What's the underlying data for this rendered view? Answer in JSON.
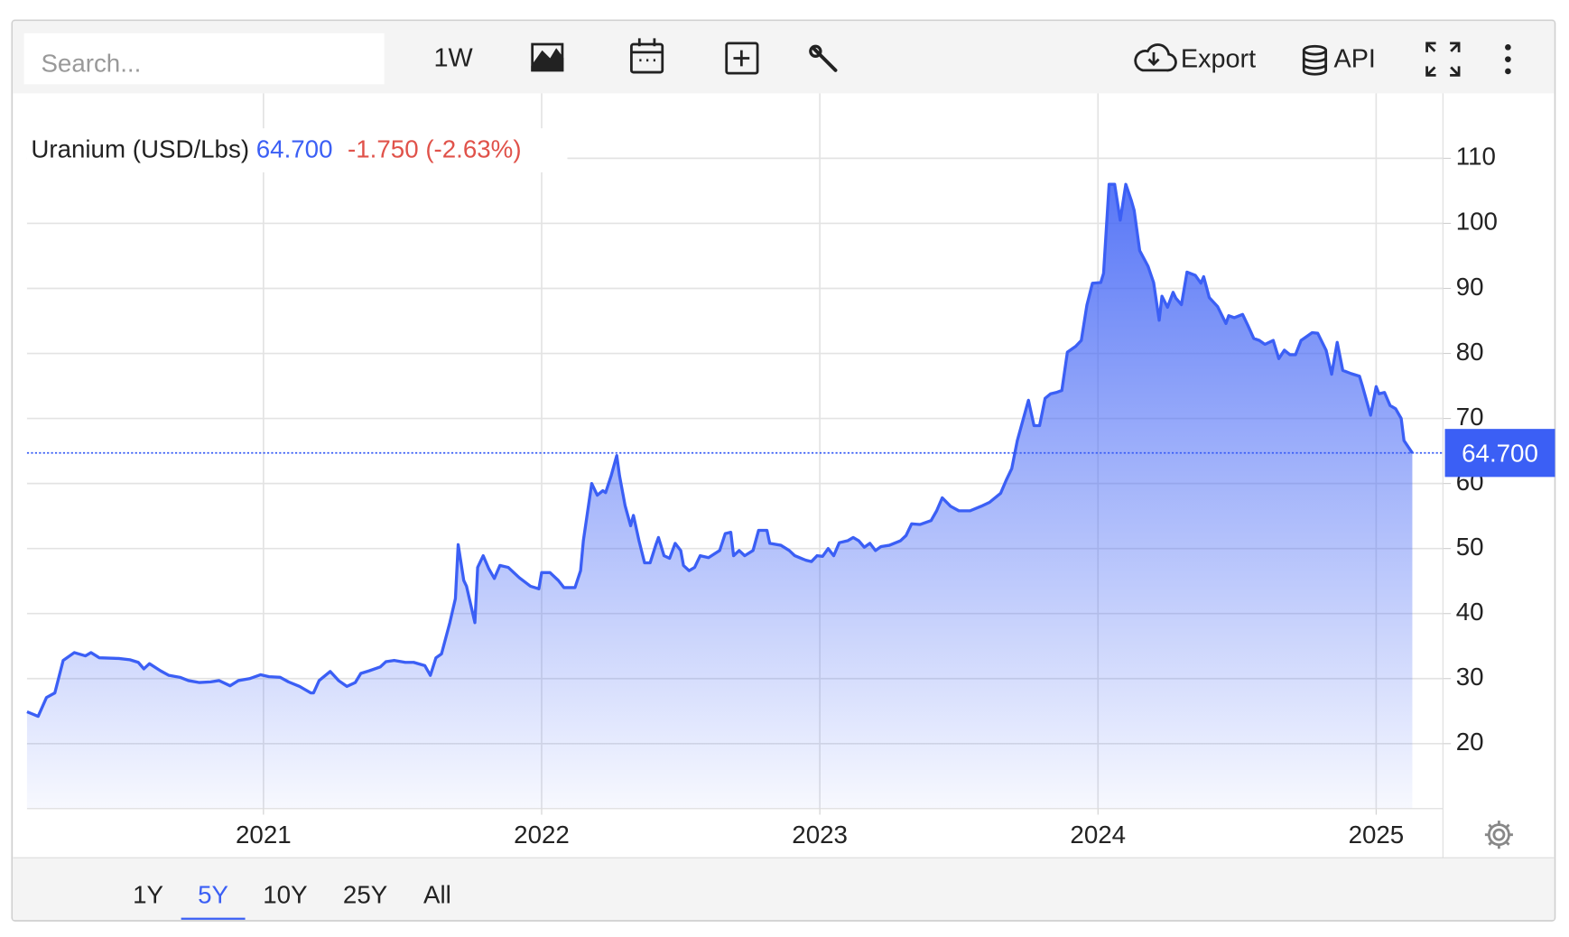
{
  "toolbar": {
    "search_placeholder": "Search...",
    "interval": "1W",
    "export": "Export",
    "api": "API"
  },
  "ranges": {
    "options": [
      "1Y",
      "5Y",
      "10Y",
      "25Y",
      "All"
    ],
    "active": 1
  },
  "chart_data": {
    "type": "area",
    "title": "Uranium (USD/Lbs)",
    "price": {
      "value": 64.7,
      "label": "64.700"
    },
    "change": {
      "value": -1.75,
      "label": "-1.750"
    },
    "change_percent": {
      "value": -2.63,
      "label": "(-2.63%)"
    },
    "color": "#3b5ff5",
    "price_color": "#3b5ff5",
    "change_color": "#e0524a",
    "xlim": [
      2020.15,
      2025.24
    ],
    "ylim": [
      10,
      120
    ],
    "xticks": [
      2021,
      2022,
      2023,
      2024,
      2025
    ],
    "yticks": [
      20,
      30,
      40,
      50,
      60,
      70,
      80,
      90,
      100,
      110
    ],
    "grid": true,
    "x": [
      2020.15,
      2020.19,
      2020.22,
      2020.25,
      2020.28,
      2020.32,
      2020.36,
      2020.38,
      2020.41,
      2020.48,
      2020.52,
      2020.55,
      2020.57,
      2020.59,
      2020.63,
      2020.66,
      2020.7,
      2020.73,
      2020.77,
      2020.81,
      2020.84,
      2020.88,
      2020.91,
      2020.95,
      2020.99,
      2021.02,
      2021.06,
      2021.09,
      2021.13,
      2021.17,
      2021.18,
      2021.2,
      2021.24,
      2021.27,
      2021.3,
      2021.33,
      2021.35,
      2021.38,
      2021.42,
      2021.44,
      2021.47,
      2021.51,
      2021.54,
      2021.58,
      2021.6,
      2021.62,
      2021.64,
      2021.67,
      2021.69,
      2021.7,
      2021.72,
      2021.73,
      2021.76,
      2021.77,
      2021.79,
      2021.81,
      2021.83,
      2021.85,
      2021.88,
      2021.92,
      2021.96,
      2021.99,
      2022.0,
      2022.03,
      2022.06,
      2022.08,
      2022.12,
      2022.14,
      2022.15,
      2022.18,
      2022.2,
      2022.22,
      2022.23,
      2022.25,
      2022.27,
      2022.28,
      2022.3,
      2022.32,
      2022.33,
      2022.35,
      2022.37,
      2022.39,
      2022.41,
      2022.42,
      2022.44,
      2022.46,
      2022.48,
      2022.5,
      2022.51,
      2022.53,
      2022.55,
      2022.57,
      2022.6,
      2022.64,
      2022.66,
      2022.68,
      2022.69,
      2022.71,
      2022.73,
      2022.76,
      2022.78,
      2022.81,
      2022.82,
      2022.86,
      2022.89,
      2022.91,
      2022.95,
      2022.97,
      2022.99,
      2023.01,
      2023.03,
      2023.05,
      2023.07,
      2023.1,
      2023.12,
      2023.14,
      2023.16,
      2023.18,
      2023.2,
      2023.22,
      2023.25,
      2023.29,
      2023.31,
      2023.33,
      2023.36,
      2023.4,
      2023.42,
      2023.44,
      2023.47,
      2023.5,
      2023.54,
      2023.58,
      2023.61,
      2023.65,
      2023.67,
      2023.69,
      2023.71,
      2023.73,
      2023.75,
      2023.77,
      2023.79,
      2023.81,
      2023.83,
      2023.85,
      2023.87,
      2023.89,
      2023.92,
      2023.94,
      2023.96,
      2023.98,
      2024.01,
      2024.02,
      2024.04,
      2024.06,
      2024.08,
      2024.1,
      2024.12,
      2024.13,
      2024.15,
      2024.18,
      2024.2,
      2024.22,
      2024.23,
      2024.25,
      2024.27,
      2024.28,
      2024.3,
      2024.32,
      2024.35,
      2024.37,
      2024.38,
      2024.4,
      2024.43,
      2024.46,
      2024.47,
      2024.49,
      2024.52,
      2024.54,
      2024.56,
      2024.58,
      2024.6,
      2024.63,
      2024.65,
      2024.67,
      2024.69,
      2024.71,
      2024.73,
      2024.74,
      2024.77,
      2024.79,
      2024.82,
      2024.84,
      2024.86,
      2024.88,
      2024.91,
      2024.94,
      2024.95,
      2024.98,
      2025.0,
      2025.01,
      2025.03,
      2025.05,
      2025.07,
      2025.09,
      2025.1,
      2025.13
    ],
    "values": [
      24.9,
      24.2,
      27.1,
      27.8,
      32.8,
      34.0,
      33.5,
      34.0,
      33.2,
      33.1,
      32.9,
      32.5,
      31.5,
      32.3,
      31.2,
      30.5,
      30.2,
      29.7,
      29.4,
      29.5,
      29.7,
      28.9,
      29.7,
      30.0,
      30.6,
      30.3,
      30.2,
      29.5,
      28.8,
      27.8,
      27.8,
      29.7,
      31.1,
      29.7,
      28.8,
      29.4,
      30.8,
      31.2,
      31.8,
      32.6,
      32.8,
      32.5,
      32.5,
      32.0,
      30.5,
      33.2,
      33.8,
      38.6,
      42.3,
      50.6,
      45.1,
      44.2,
      38.6,
      47.1,
      48.9,
      46.9,
      45.4,
      47.4,
      47.1,
      45.5,
      44.2,
      43.8,
      46.3,
      46.3,
      45.1,
      44.0,
      44.0,
      46.6,
      51.2,
      60.0,
      58.2,
      58.9,
      58.6,
      61.2,
      64.3,
      61.2,
      56.6,
      53.5,
      55.1,
      51.2,
      47.8,
      47.8,
      50.5,
      51.7,
      48.9,
      48.5,
      50.8,
      49.7,
      47.4,
      46.6,
      47.1,
      48.9,
      48.6,
      49.7,
      52.3,
      52.5,
      48.9,
      49.7,
      48.9,
      49.7,
      52.8,
      52.8,
      50.8,
      50.5,
      49.7,
      48.9,
      48.2,
      48.0,
      48.9,
      48.8,
      50.0,
      48.9,
      50.9,
      51.2,
      51.7,
      51.2,
      50.2,
      50.8,
      49.7,
      50.3,
      50.5,
      51.2,
      52.0,
      53.8,
      53.7,
      54.3,
      55.8,
      57.8,
      56.5,
      55.8,
      55.8,
      56.5,
      57.1,
      58.5,
      60.5,
      62.3,
      66.6,
      69.7,
      72.8,
      68.9,
      68.9,
      73.1,
      73.8,
      74.0,
      74.3,
      80.2,
      81.1,
      82.0,
      87.4,
      90.8,
      90.9,
      92.3,
      106.0,
      106.0,
      100.5,
      106.0,
      103.5,
      102.0,
      95.8,
      93.4,
      90.9,
      85.1,
      88.8,
      87.1,
      89.4,
      88.5,
      87.5,
      92.5,
      92.0,
      90.8,
      91.8,
      88.6,
      87.2,
      84.6,
      85.8,
      85.5,
      86.0,
      84.2,
      82.3,
      82.0,
      81.4,
      82.0,
      79.2,
      80.5,
      79.8,
      79.8,
      82.0,
      82.3,
      83.2,
      83.1,
      80.5,
      76.8,
      81.7,
      77.4,
      76.9,
      76.5,
      75.1,
      70.5,
      74.9,
      73.8,
      74.0,
      72.0,
      71.5,
      70.0,
      66.6,
      64.7
    ]
  }
}
